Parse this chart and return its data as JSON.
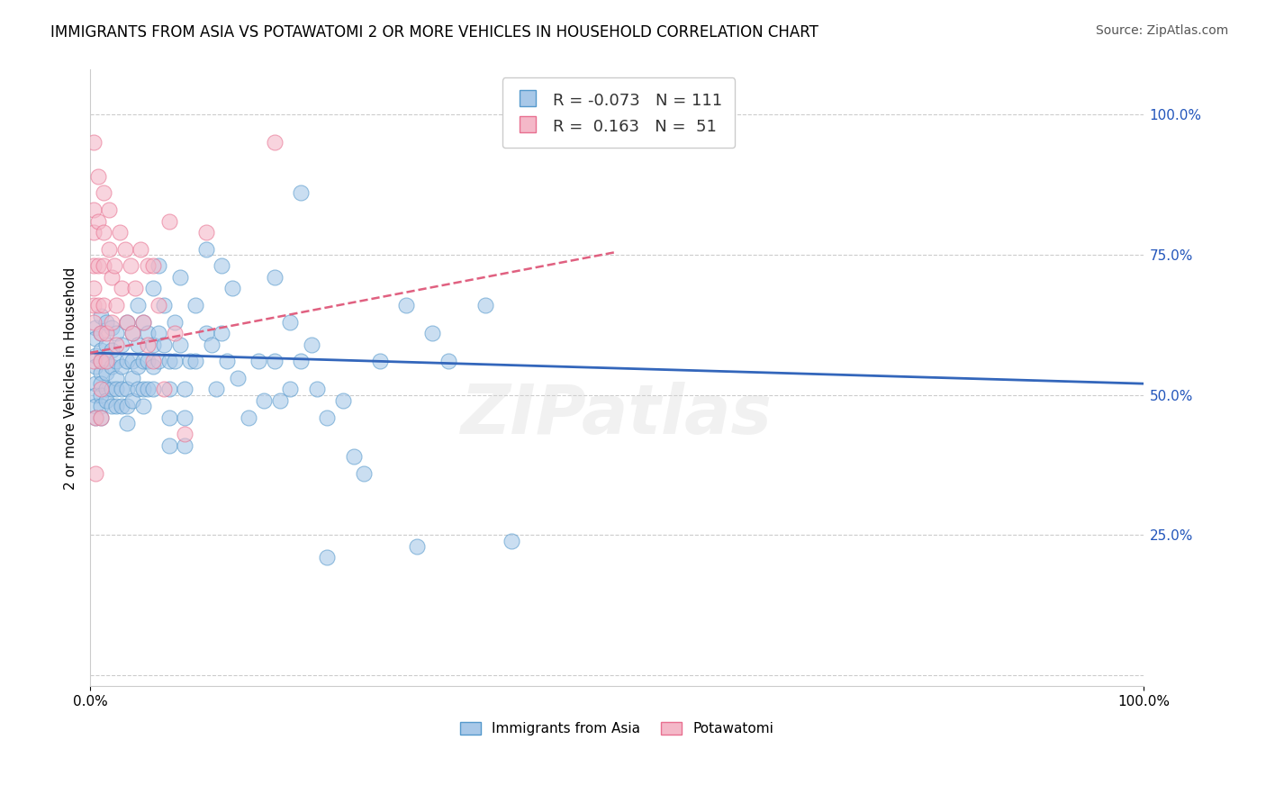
{
  "title": "IMMIGRANTS FROM ASIA VS POTAWATOMI 2 OR MORE VEHICLES IN HOUSEHOLD CORRELATION CHART",
  "source": "Source: ZipAtlas.com",
  "ylabel": "2 or more Vehicles in Household",
  "xlim": [
    0.0,
    1.0
  ],
  "ylim": [
    -0.02,
    1.08
  ],
  "yticks": [
    0.0,
    0.25,
    0.5,
    0.75,
    1.0
  ],
  "ytick_labels": [
    "",
    "25.0%",
    "50.0%",
    "75.0%",
    "100.0%"
  ],
  "color_blue": "#a8c8e8",
  "color_pink": "#f4b8c8",
  "color_edge_blue": "#5599cc",
  "color_edge_pink": "#e87090",
  "color_line_blue": "#3366bb",
  "color_line_pink": "#e06080",
  "background_color": "#ffffff",
  "watermark_text": "ZIPatlas",
  "blue_scatter": [
    [
      0.005,
      0.62
    ],
    [
      0.005,
      0.6
    ],
    [
      0.005,
      0.57
    ],
    [
      0.005,
      0.55
    ],
    [
      0.005,
      0.52
    ],
    [
      0.005,
      0.5
    ],
    [
      0.005,
      0.48
    ],
    [
      0.005,
      0.46
    ],
    [
      0.01,
      0.64
    ],
    [
      0.01,
      0.61
    ],
    [
      0.01,
      0.58
    ],
    [
      0.01,
      0.56
    ],
    [
      0.01,
      0.54
    ],
    [
      0.01,
      0.52
    ],
    [
      0.01,
      0.5
    ],
    [
      0.01,
      0.48
    ],
    [
      0.01,
      0.46
    ],
    [
      0.015,
      0.63
    ],
    [
      0.015,
      0.59
    ],
    [
      0.015,
      0.56
    ],
    [
      0.015,
      0.54
    ],
    [
      0.015,
      0.51
    ],
    [
      0.015,
      0.49
    ],
    [
      0.02,
      0.62
    ],
    [
      0.02,
      0.58
    ],
    [
      0.02,
      0.55
    ],
    [
      0.02,
      0.51
    ],
    [
      0.02,
      0.48
    ],
    [
      0.025,
      0.61
    ],
    [
      0.025,
      0.56
    ],
    [
      0.025,
      0.53
    ],
    [
      0.025,
      0.51
    ],
    [
      0.025,
      0.48
    ],
    [
      0.03,
      0.59
    ],
    [
      0.03,
      0.55
    ],
    [
      0.03,
      0.51
    ],
    [
      0.03,
      0.48
    ],
    [
      0.035,
      0.63
    ],
    [
      0.035,
      0.56
    ],
    [
      0.035,
      0.51
    ],
    [
      0.035,
      0.48
    ],
    [
      0.035,
      0.45
    ],
    [
      0.04,
      0.61
    ],
    [
      0.04,
      0.56
    ],
    [
      0.04,
      0.53
    ],
    [
      0.04,
      0.49
    ],
    [
      0.045,
      0.66
    ],
    [
      0.045,
      0.59
    ],
    [
      0.045,
      0.55
    ],
    [
      0.045,
      0.51
    ],
    [
      0.05,
      0.63
    ],
    [
      0.05,
      0.56
    ],
    [
      0.05,
      0.51
    ],
    [
      0.05,
      0.48
    ],
    [
      0.055,
      0.61
    ],
    [
      0.055,
      0.56
    ],
    [
      0.055,
      0.51
    ],
    [
      0.06,
      0.69
    ],
    [
      0.06,
      0.59
    ],
    [
      0.06,
      0.55
    ],
    [
      0.06,
      0.51
    ],
    [
      0.065,
      0.73
    ],
    [
      0.065,
      0.61
    ],
    [
      0.065,
      0.56
    ],
    [
      0.07,
      0.66
    ],
    [
      0.07,
      0.59
    ],
    [
      0.075,
      0.56
    ],
    [
      0.075,
      0.51
    ],
    [
      0.075,
      0.46
    ],
    [
      0.075,
      0.41
    ],
    [
      0.08,
      0.63
    ],
    [
      0.08,
      0.56
    ],
    [
      0.085,
      0.71
    ],
    [
      0.085,
      0.59
    ],
    [
      0.09,
      0.51
    ],
    [
      0.09,
      0.46
    ],
    [
      0.09,
      0.41
    ],
    [
      0.095,
      0.56
    ],
    [
      0.1,
      0.66
    ],
    [
      0.1,
      0.56
    ],
    [
      0.11,
      0.76
    ],
    [
      0.11,
      0.61
    ],
    [
      0.115,
      0.59
    ],
    [
      0.12,
      0.51
    ],
    [
      0.125,
      0.73
    ],
    [
      0.125,
      0.61
    ],
    [
      0.13,
      0.56
    ],
    [
      0.135,
      0.69
    ],
    [
      0.14,
      0.53
    ],
    [
      0.15,
      0.46
    ],
    [
      0.16,
      0.56
    ],
    [
      0.165,
      0.49
    ],
    [
      0.175,
      0.71
    ],
    [
      0.175,
      0.56
    ],
    [
      0.18,
      0.49
    ],
    [
      0.19,
      0.63
    ],
    [
      0.19,
      0.51
    ],
    [
      0.2,
      0.86
    ],
    [
      0.2,
      0.56
    ],
    [
      0.21,
      0.59
    ],
    [
      0.215,
      0.51
    ],
    [
      0.225,
      0.46
    ],
    [
      0.225,
      0.21
    ],
    [
      0.24,
      0.49
    ],
    [
      0.25,
      0.39
    ],
    [
      0.26,
      0.36
    ],
    [
      0.275,
      0.56
    ],
    [
      0.3,
      0.66
    ],
    [
      0.31,
      0.23
    ],
    [
      0.325,
      0.61
    ],
    [
      0.34,
      0.56
    ],
    [
      0.375,
      0.66
    ],
    [
      0.4,
      0.24
    ]
  ],
  "pink_scatter": [
    [
      0.003,
      0.95
    ],
    [
      0.003,
      0.83
    ],
    [
      0.003,
      0.79
    ],
    [
      0.003,
      0.73
    ],
    [
      0.003,
      0.69
    ],
    [
      0.003,
      0.66
    ],
    [
      0.003,
      0.63
    ],
    [
      0.003,
      0.56
    ],
    [
      0.005,
      0.46
    ],
    [
      0.005,
      0.36
    ],
    [
      0.008,
      0.89
    ],
    [
      0.008,
      0.81
    ],
    [
      0.008,
      0.73
    ],
    [
      0.008,
      0.66
    ],
    [
      0.01,
      0.61
    ],
    [
      0.01,
      0.56
    ],
    [
      0.01,
      0.51
    ],
    [
      0.01,
      0.46
    ],
    [
      0.013,
      0.86
    ],
    [
      0.013,
      0.79
    ],
    [
      0.013,
      0.73
    ],
    [
      0.013,
      0.66
    ],
    [
      0.015,
      0.61
    ],
    [
      0.015,
      0.56
    ],
    [
      0.018,
      0.83
    ],
    [
      0.018,
      0.76
    ],
    [
      0.02,
      0.71
    ],
    [
      0.02,
      0.63
    ],
    [
      0.023,
      0.73
    ],
    [
      0.025,
      0.66
    ],
    [
      0.025,
      0.59
    ],
    [
      0.028,
      0.79
    ],
    [
      0.03,
      0.69
    ],
    [
      0.033,
      0.76
    ],
    [
      0.035,
      0.63
    ],
    [
      0.038,
      0.73
    ],
    [
      0.04,
      0.61
    ],
    [
      0.043,
      0.69
    ],
    [
      0.048,
      0.76
    ],
    [
      0.05,
      0.63
    ],
    [
      0.055,
      0.73
    ],
    [
      0.055,
      0.59
    ],
    [
      0.06,
      0.73
    ],
    [
      0.06,
      0.56
    ],
    [
      0.065,
      0.66
    ],
    [
      0.07,
      0.51
    ],
    [
      0.075,
      0.81
    ],
    [
      0.08,
      0.61
    ],
    [
      0.09,
      0.43
    ],
    [
      0.11,
      0.79
    ],
    [
      0.175,
      0.95
    ]
  ],
  "blue_line_x": [
    0.0,
    1.0
  ],
  "blue_line_y": [
    0.575,
    0.52
  ],
  "pink_line_x": [
    0.0,
    0.5
  ],
  "pink_line_y": [
    0.575,
    0.755
  ],
  "title_fontsize": 12,
  "axis_label_fontsize": 11,
  "tick_fontsize": 11,
  "legend_fontsize": 13,
  "watermark_fontsize": 55,
  "r_color": "#2255bb",
  "n_color": "#333333"
}
